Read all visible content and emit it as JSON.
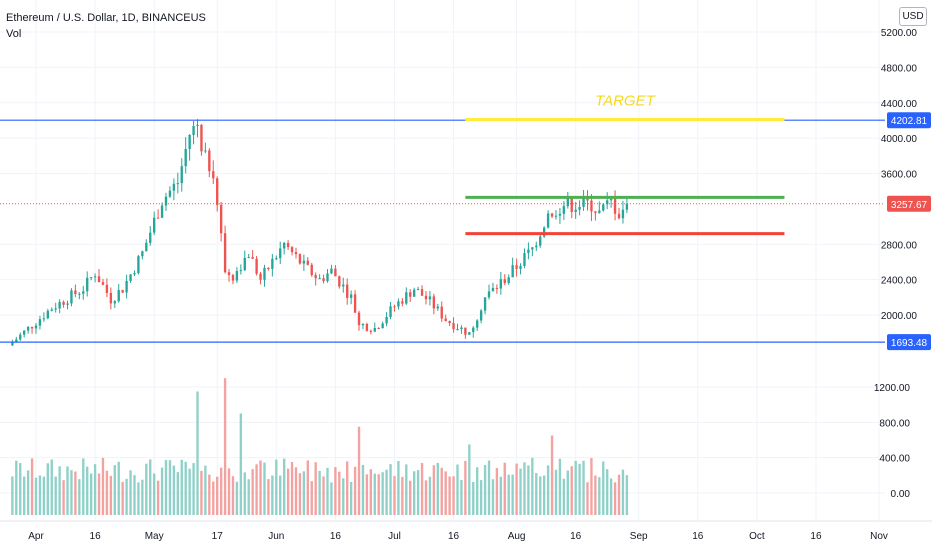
{
  "legend": {
    "symbol_line": "Ethereum / U.S. Dollar, 1D, BINANCEUS",
    "indicator": "Vol"
  },
  "currency_button": "USD",
  "colors": {
    "up": "#26a69a",
    "down": "#ef5350",
    "vol_up": "#8fd1c8",
    "vol_down": "#f2a2a0",
    "hline": "#2962ff",
    "target_line": "#ffeb3b",
    "target_text": "#f9d71c",
    "resistance": "#4caf50",
    "support": "#f44336",
    "grid": "#f0f3fa"
  },
  "chart_data": {
    "type": "candlestick",
    "title": "Ethereum / U.S. Dollar, 1D, BINANCEUS",
    "price_axis": {
      "ticks": [
        "5200.00",
        "4800.00",
        "4400.00",
        "4000.00",
        "3600.00",
        "2800.00",
        "2400.00",
        "2000.00"
      ],
      "ylim": [
        1650,
        5400
      ]
    },
    "volume_axis": {
      "ticks": [
        "1200.00",
        "800.00",
        "400.00",
        "0.00"
      ],
      "ylim": [
        -120,
        1600
      ]
    },
    "time_axis": {
      "labels": [
        "Apr",
        "16",
        "May",
        "17",
        "Jun",
        "16",
        "Jul",
        "16",
        "Aug",
        "16",
        "Sep",
        "16",
        "Oct",
        "16",
        "Nov"
      ],
      "label_dates": [
        "2021-04-01",
        "2021-04-16",
        "2021-05-01",
        "2021-05-17",
        "2021-06-01",
        "2021-06-16",
        "2021-07-01",
        "2021-07-16",
        "2021-08-01",
        "2021-08-16",
        "2021-09-01",
        "2021-09-16",
        "2021-10-01",
        "2021-10-16",
        "2021-11-01"
      ]
    },
    "horizontal_lines": [
      {
        "price": 4202.81,
        "label": "4202.81"
      },
      {
        "price": 1693.48,
        "label": "1693.48"
      }
    ],
    "last_price": {
      "price": 3257.67,
      "label": "3257.67"
    },
    "drawings": [
      {
        "kind": "target",
        "price": 4210,
        "start": "2021-07-19",
        "end": "2021-10-08",
        "text": "TARGET"
      },
      {
        "kind": "resistance",
        "price": 3330,
        "start": "2021-07-19",
        "end": "2021-10-08"
      },
      {
        "kind": "support",
        "price": 2920,
        "start": "2021-07-19",
        "end": "2021-10-08"
      }
    ],
    "anchors": [
      {
        "date": "2021-03-26",
        "close": 1690
      },
      {
        "date": "2021-04-05",
        "close": 2080
      },
      {
        "date": "2021-04-13",
        "close": 2300
      },
      {
        "date": "2021-04-16",
        "close": 2480
      },
      {
        "date": "2021-04-20",
        "close": 2180
      },
      {
        "date": "2021-04-23",
        "close": 2300
      },
      {
        "date": "2021-04-28",
        "close": 2700
      },
      {
        "date": "2021-05-03",
        "close": 3300
      },
      {
        "date": "2021-05-07",
        "close": 3500
      },
      {
        "date": "2021-05-10",
        "close": 4050
      },
      {
        "date": "2021-05-12",
        "close": 4150
      },
      {
        "date": "2021-05-13",
        "close": 3800
      },
      {
        "date": "2021-05-16",
        "close": 3650
      },
      {
        "date": "2021-05-19",
        "close": 2500
      },
      {
        "date": "2021-05-21",
        "close": 2450
      },
      {
        "date": "2021-05-25",
        "close": 2700
      },
      {
        "date": "2021-05-28",
        "close": 2400
      },
      {
        "date": "2021-06-03",
        "close": 2800
      },
      {
        "date": "2021-06-08",
        "close": 2550
      },
      {
        "date": "2021-06-12",
        "close": 2400
      },
      {
        "date": "2021-06-15",
        "close": 2500
      },
      {
        "date": "2021-06-20",
        "close": 2200
      },
      {
        "date": "2021-06-22",
        "close": 1900
      },
      {
        "date": "2021-06-26",
        "close": 1850
      },
      {
        "date": "2021-07-01",
        "close": 2100
      },
      {
        "date": "2021-07-06",
        "close": 2300
      },
      {
        "date": "2021-07-10",
        "close": 2150
      },
      {
        "date": "2021-07-14",
        "close": 1950
      },
      {
        "date": "2021-07-20",
        "close": 1790
      },
      {
        "date": "2021-07-24",
        "close": 2200
      },
      {
        "date": "2021-07-30",
        "close": 2450
      },
      {
        "date": "2021-08-05",
        "close": 2750
      },
      {
        "date": "2021-08-09",
        "close": 3150
      },
      {
        "date": "2021-08-13",
        "close": 3250
      },
      {
        "date": "2021-08-20",
        "close": 3250
      },
      {
        "date": "2021-08-22",
        "close": 3150
      },
      {
        "date": "2021-08-25",
        "close": 3280
      },
      {
        "date": "2021-08-27",
        "close": 3150
      },
      {
        "date": "2021-08-29",
        "close": 3257.67
      }
    ],
    "volume_spikes": [
      {
        "date": "2021-05-12",
        "volume": 1150
      },
      {
        "date": "2021-05-19",
        "volume": 1300
      },
      {
        "date": "2021-05-23",
        "volume": 900
      },
      {
        "date": "2021-06-22",
        "volume": 750
      },
      {
        "date": "2021-07-20",
        "volume": 550
      },
      {
        "date": "2021-08-10",
        "volume": 650
      }
    ]
  }
}
